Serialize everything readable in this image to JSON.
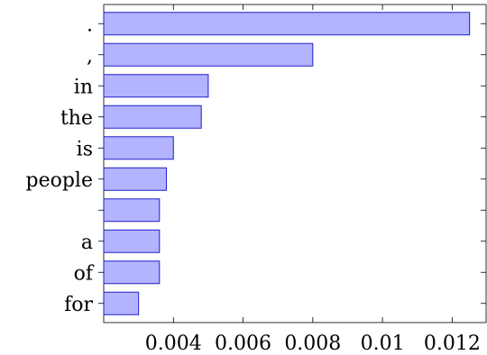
{
  "chart_data": {
    "type": "bar",
    "orientation": "horizontal",
    "categories": [
      ".",
      ",",
      "in",
      "the",
      "is",
      "people",
      "",
      "a",
      "of",
      "for"
    ],
    "values": [
      0.0125,
      0.008,
      0.005,
      0.0048,
      0.004,
      0.0038,
      0.0036,
      0.0036,
      0.0036,
      0.003
    ],
    "title": "",
    "xlabel": "",
    "ylabel": "",
    "xlim": [
      0.002,
      0.013
    ],
    "xticks": [
      0.004,
      0.006,
      0.008,
      0.01,
      0.012
    ],
    "xtick_labels": [
      "0.004",
      "0.006",
      "0.008",
      "0.01",
      "0.012"
    ],
    "grid": false,
    "bar_fill": "#b3b3ff",
    "bar_edge": "#2020cc"
  }
}
